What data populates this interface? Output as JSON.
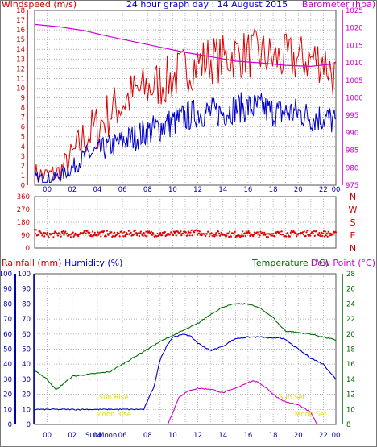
{
  "header": {
    "left_label": "Windspeed (m/s)",
    "title": "24 hour graph day : 14 August 2015",
    "right_label": "Barometer (hpa)"
  },
  "wind_axis": [
    "0",
    "1",
    "2",
    "3",
    "4",
    "5",
    "6",
    "7",
    "8",
    "9",
    "10",
    "11",
    "12",
    "13",
    "14",
    "15",
    "16",
    "17",
    "18"
  ],
  "baro_axis": [
    "975",
    "980",
    "985",
    "990",
    "995",
    "1000",
    "1005",
    "1010",
    "1015",
    "1020",
    "1025"
  ],
  "time_ticks": [
    "00",
    "02",
    "04",
    "06",
    "08",
    "10",
    "12",
    "14",
    "16",
    "18",
    "20",
    "22",
    "00"
  ],
  "direction_axis": {
    "degrees": [
      "360",
      "270",
      "180",
      "90",
      "0"
    ],
    "compass": [
      "N",
      "W",
      "S",
      "E",
      "N"
    ]
  },
  "lower_header": {
    "rainfall": "Rainfall (mm)",
    "humidity": "Humidity (%)",
    "temperature": "Temperature (°C)",
    "dewpoint": "Dew Point (°C)"
  },
  "rain_axis": [
    "0",
    "10",
    "20",
    "30",
    "40",
    "50",
    "60",
    "70",
    "80",
    "90",
    "100"
  ],
  "humidity_axis": [
    "0",
    "10",
    "20",
    "30",
    "40",
    "50",
    "60",
    "70",
    "80",
    "90",
    "100"
  ],
  "temp_axis": [
    "8",
    "10",
    "12",
    "14",
    "16",
    "18",
    "20",
    "22",
    "24",
    "26",
    "28"
  ],
  "events": {
    "sun_rise": "Sun Rise",
    "sun_set": "Sun Set",
    "moon_rise": "Moon Rise",
    "moon_set": "Moon Set",
    "sun_moon_label": "SunMoon"
  },
  "colors": {
    "gust": "#e00000",
    "wind": "#0000cc",
    "baro": "#d000d0",
    "direction": "#e00000",
    "humidity": "#0000cc",
    "temperature": "#007000",
    "dewpoint": "#d000d0",
    "rain": "#0000aa",
    "event_text": "#e0e000",
    "axis_left": "#cc0000",
    "axis_right": "#cc00cc",
    "axis_temp": "#006600"
  },
  "chart_data": [
    {
      "type": "line",
      "x_unit": "hour",
      "xlim": [
        0,
        24
      ],
      "series": [
        {
          "name": "Windspeed (m/s)",
          "role": "gust",
          "axis": "left",
          "x": [
            0,
            1,
            2,
            3,
            4,
            5,
            6,
            7,
            8,
            9,
            10,
            11,
            12,
            13,
            14,
            15,
            16,
            17,
            18,
            19,
            20,
            21,
            22,
            23,
            24
          ],
          "y": [
            1.2,
            1.0,
            1.4,
            3.0,
            5.0,
            6.0,
            7.5,
            8.5,
            9.5,
            10.0,
            10.5,
            11.0,
            12.0,
            12.5,
            13.0,
            13.0,
            13.5,
            13.5,
            13.5,
            13.0,
            13.0,
            13.0,
            13.0,
            13.0,
            11.0
          ]
        },
        {
          "name": "Windspeed (m/s)",
          "role": "average",
          "axis": "left",
          "x": [
            0,
            1,
            2,
            3,
            4,
            5,
            6,
            7,
            8,
            9,
            10,
            11,
            12,
            13,
            14,
            15,
            16,
            17,
            18,
            19,
            20,
            21,
            22,
            23,
            24
          ],
          "y": [
            0.8,
            0.6,
            0.9,
            1.8,
            3.0,
            3.5,
            4.0,
            4.5,
            5.0,
            5.5,
            6.0,
            6.5,
            7.0,
            7.5,
            7.5,
            7.5,
            8.0,
            8.0,
            8.0,
            7.5,
            7.5,
            7.5,
            7.0,
            7.0,
            6.5
          ]
        },
        {
          "name": "Barometer (hpa)",
          "axis": "right",
          "x": [
            0,
            2,
            4,
            6,
            8,
            10,
            12,
            14,
            16,
            18,
            20,
            22,
            24
          ],
          "y": [
            1021.0,
            1020.3,
            1019.2,
            1017.5,
            1016.0,
            1014.5,
            1013.0,
            1011.8,
            1010.5,
            1010.0,
            1009.3,
            1009.0,
            1009.8
          ],
          "ylim": [
            975,
            1025
          ]
        }
      ],
      "ylim": [
        0,
        18
      ]
    },
    {
      "type": "scatter",
      "name": "Wind direction",
      "ylim": [
        0,
        360
      ],
      "x": [
        0,
        1,
        2,
        3,
        4,
        5,
        6,
        7,
        8,
        9,
        10,
        11,
        12,
        13,
        14,
        15,
        16,
        17,
        18,
        19,
        20,
        21,
        22,
        23,
        24
      ],
      "y": [
        110,
        90,
        100,
        95,
        105,
        100,
        100,
        95,
        105,
        100,
        100,
        95,
        105,
        110,
        100,
        100,
        95,
        100,
        95,
        100,
        100,
        100,
        105,
        100,
        95
      ]
    },
    {
      "type": "line",
      "series": [
        {
          "name": "Humidity (%)",
          "axis": "humidity",
          "x": [
            0,
            1,
            2,
            3,
            4,
            5,
            6,
            7,
            8,
            8.7,
            9.5,
            10,
            10.5,
            11,
            12,
            12.5,
            13,
            14,
            15,
            16,
            17,
            18,
            19,
            19.5,
            20,
            21,
            22,
            23,
            23.7,
            24
          ],
          "y": [
            10,
            10,
            10,
            10,
            10,
            10,
            10,
            10,
            10,
            10,
            25,
            43,
            52,
            58,
            60,
            58,
            54,
            49,
            52,
            57,
            58,
            58,
            57,
            58,
            56,
            50,
            44,
            40,
            33,
            30
          ]
        },
        {
          "name": "Temperature (°C)",
          "axis": "temp",
          "x": [
            0,
            1,
            1.7,
            2,
            3,
            4,
            5,
            6,
            7,
            8,
            9,
            10,
            11,
            12,
            13,
            14,
            15,
            16,
            17,
            18,
            19,
            19.5,
            20,
            21,
            22,
            23,
            24
          ],
          "y": [
            15.2,
            14.0,
            12.6,
            13.0,
            14.4,
            14.6,
            14.8,
            15.0,
            16.0,
            17.0,
            18.0,
            19.0,
            19.8,
            20.6,
            21.4,
            22.6,
            23.6,
            24.0,
            24.0,
            23.4,
            22.2,
            21.2,
            20.4,
            20.2,
            20.0,
            19.6,
            19.2
          ]
        },
        {
          "name": "Dew Point (°C)",
          "axis": "temp",
          "x": [
            10.6,
            11,
            11.5,
            12,
            12.5,
            13,
            14,
            15,
            16,
            17,
            17.5,
            18,
            18.5,
            19,
            19.5,
            20,
            21,
            22,
            22.5
          ],
          "y": [
            8.0,
            9.6,
            11.6,
            12.2,
            12.6,
            12.8,
            12.7,
            12.2,
            12.8,
            13.6,
            13.8,
            13.4,
            12.8,
            12.0,
            11.4,
            11.0,
            10.6,
            9.6,
            8.0
          ]
        },
        {
          "name": "Rainfall (mm)",
          "axis": "rain",
          "x": [
            0,
            24
          ],
          "y": [
            0,
            0
          ]
        }
      ],
      "humidity_ylim": [
        0,
        100
      ],
      "temp_ylim": [
        8,
        28
      ],
      "rain_ylim": [
        0,
        100
      ]
    }
  ]
}
